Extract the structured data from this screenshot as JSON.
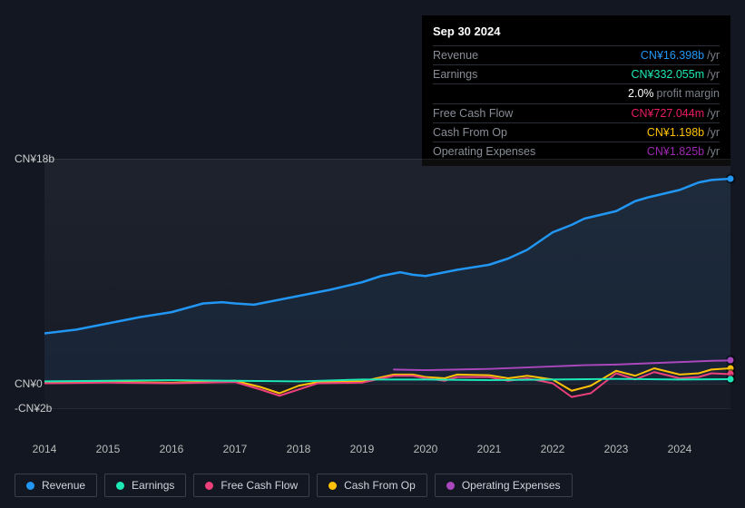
{
  "tooltip": {
    "date": "Sep 30 2024",
    "rows": [
      {
        "label": "Revenue",
        "value": "CN¥16.398b",
        "unit": "/yr",
        "color_class": "c-revenue"
      },
      {
        "label": "Earnings",
        "value": "CN¥332.055m",
        "unit": "/yr",
        "color_class": "c-earnings"
      },
      {
        "label": "",
        "value": "2.0%",
        "unit": "profit margin",
        "color_class": "c-white"
      },
      {
        "label": "Free Cash Flow",
        "value": "CN¥727.044m",
        "unit": "/yr",
        "color_class": "c-fcf"
      },
      {
        "label": "Cash From Op",
        "value": "CN¥1.198b",
        "unit": "/yr",
        "color_class": "c-cashop"
      },
      {
        "label": "Operating Expenses",
        "value": "CN¥1.825b",
        "unit": "/yr",
        "color_class": "c-opex"
      }
    ]
  },
  "chart": {
    "type": "line",
    "ylim": [
      -2,
      18
    ],
    "y_ticks": [
      {
        "v": 18,
        "label": "CN¥18b"
      },
      {
        "v": 0,
        "label": "CN¥0"
      },
      {
        "v": -2,
        "label": "-CN¥2b"
      }
    ],
    "x_labels": [
      "2014",
      "2015",
      "2016",
      "2017",
      "2018",
      "2019",
      "2020",
      "2021",
      "2022",
      "2023",
      "2024"
    ],
    "colors": {
      "revenue": "#2196f3",
      "earnings": "#1de9b6",
      "fcf": "#ec407a",
      "cashop": "#ffc107",
      "opex": "#ab47bc",
      "grid": "#2a2e39",
      "bg": "#131722"
    },
    "series": {
      "revenue": {
        "color": "#2196f3",
        "width": 2.5,
        "data": [
          [
            0,
            4.0
          ],
          [
            0.5,
            4.3
          ],
          [
            1,
            4.8
          ],
          [
            1.5,
            5.3
          ],
          [
            2,
            5.7
          ],
          [
            2.5,
            6.4
          ],
          [
            2.8,
            6.5
          ],
          [
            3,
            6.4
          ],
          [
            3.3,
            6.3
          ],
          [
            3.5,
            6.5
          ],
          [
            4,
            7.0
          ],
          [
            4.5,
            7.5
          ],
          [
            5,
            8.1
          ],
          [
            5.3,
            8.6
          ],
          [
            5.6,
            8.9
          ],
          [
            5.8,
            8.7
          ],
          [
            6,
            8.6
          ],
          [
            6.3,
            8.9
          ],
          [
            6.5,
            9.1
          ],
          [
            7,
            9.5
          ],
          [
            7.3,
            10.0
          ],
          [
            7.6,
            10.7
          ],
          [
            8,
            12.1
          ],
          [
            8.3,
            12.7
          ],
          [
            8.5,
            13.2
          ],
          [
            9,
            13.8
          ],
          [
            9.3,
            14.6
          ],
          [
            9.5,
            14.9
          ],
          [
            10,
            15.5
          ],
          [
            10.3,
            16.1
          ],
          [
            10.5,
            16.3
          ],
          [
            10.8,
            16.4
          ]
        ]
      },
      "earnings": {
        "color": "#1de9b6",
        "width": 2,
        "data": [
          [
            0,
            0.15
          ],
          [
            1,
            0.2
          ],
          [
            2,
            0.25
          ],
          [
            3,
            0.2
          ],
          [
            4,
            0.15
          ],
          [
            5,
            0.3
          ],
          [
            6,
            0.3
          ],
          [
            7,
            0.25
          ],
          [
            8,
            0.3
          ],
          [
            9,
            0.35
          ],
          [
            10,
            0.3
          ],
          [
            10.8,
            0.33
          ]
        ]
      },
      "fcf": {
        "color": "#ec407a",
        "width": 2,
        "data": [
          [
            0,
            0.0
          ],
          [
            1,
            0.05
          ],
          [
            2,
            0.0
          ],
          [
            3,
            0.1
          ],
          [
            3.4,
            -0.5
          ],
          [
            3.7,
            -1.0
          ],
          [
            4,
            -0.5
          ],
          [
            4.3,
            0.0
          ],
          [
            5,
            0.05
          ],
          [
            5.5,
            0.6
          ],
          [
            5.8,
            0.6
          ],
          [
            6,
            0.4
          ],
          [
            6.3,
            0.2
          ],
          [
            6.5,
            0.5
          ],
          [
            7,
            0.5
          ],
          [
            7.3,
            0.2
          ],
          [
            7.6,
            0.4
          ],
          [
            8,
            0.0
          ],
          [
            8.3,
            -1.1
          ],
          [
            8.6,
            -0.8
          ],
          [
            9,
            0.8
          ],
          [
            9.3,
            0.3
          ],
          [
            9.6,
            0.9
          ],
          [
            10,
            0.4
          ],
          [
            10.3,
            0.5
          ],
          [
            10.5,
            0.8
          ],
          [
            10.8,
            0.73
          ]
        ]
      },
      "cashop": {
        "color": "#ffc107",
        "width": 2,
        "data": [
          [
            0,
            0.1
          ],
          [
            1,
            0.1
          ],
          [
            2,
            0.05
          ],
          [
            3,
            0.2
          ],
          [
            3.4,
            -0.3
          ],
          [
            3.7,
            -0.8
          ],
          [
            4,
            -0.2
          ],
          [
            4.3,
            0.1
          ],
          [
            5,
            0.15
          ],
          [
            5.5,
            0.7
          ],
          [
            5.8,
            0.7
          ],
          [
            6,
            0.5
          ],
          [
            6.3,
            0.4
          ],
          [
            6.5,
            0.7
          ],
          [
            7,
            0.65
          ],
          [
            7.3,
            0.4
          ],
          [
            7.6,
            0.6
          ],
          [
            8,
            0.3
          ],
          [
            8.3,
            -0.6
          ],
          [
            8.6,
            -0.2
          ],
          [
            9,
            1.0
          ],
          [
            9.3,
            0.6
          ],
          [
            9.6,
            1.2
          ],
          [
            10,
            0.7
          ],
          [
            10.3,
            0.8
          ],
          [
            10.5,
            1.1
          ],
          [
            10.8,
            1.2
          ]
        ]
      },
      "opex": {
        "color": "#ab47bc",
        "width": 2,
        "data": [
          [
            5.5,
            1.1
          ],
          [
            6,
            1.05
          ],
          [
            6.5,
            1.1
          ],
          [
            7,
            1.15
          ],
          [
            7.5,
            1.25
          ],
          [
            8,
            1.35
          ],
          [
            8.5,
            1.45
          ],
          [
            9,
            1.5
          ],
          [
            9.5,
            1.6
          ],
          [
            10,
            1.7
          ],
          [
            10.5,
            1.8
          ],
          [
            10.8,
            1.83
          ]
        ]
      }
    }
  },
  "legend": [
    {
      "label": "Revenue",
      "color": "#2196f3"
    },
    {
      "label": "Earnings",
      "color": "#1de9b6"
    },
    {
      "label": "Free Cash Flow",
      "color": "#ec407a"
    },
    {
      "label": "Cash From Op",
      "color": "#ffc107"
    },
    {
      "label": "Operating Expenses",
      "color": "#ab47bc"
    }
  ]
}
